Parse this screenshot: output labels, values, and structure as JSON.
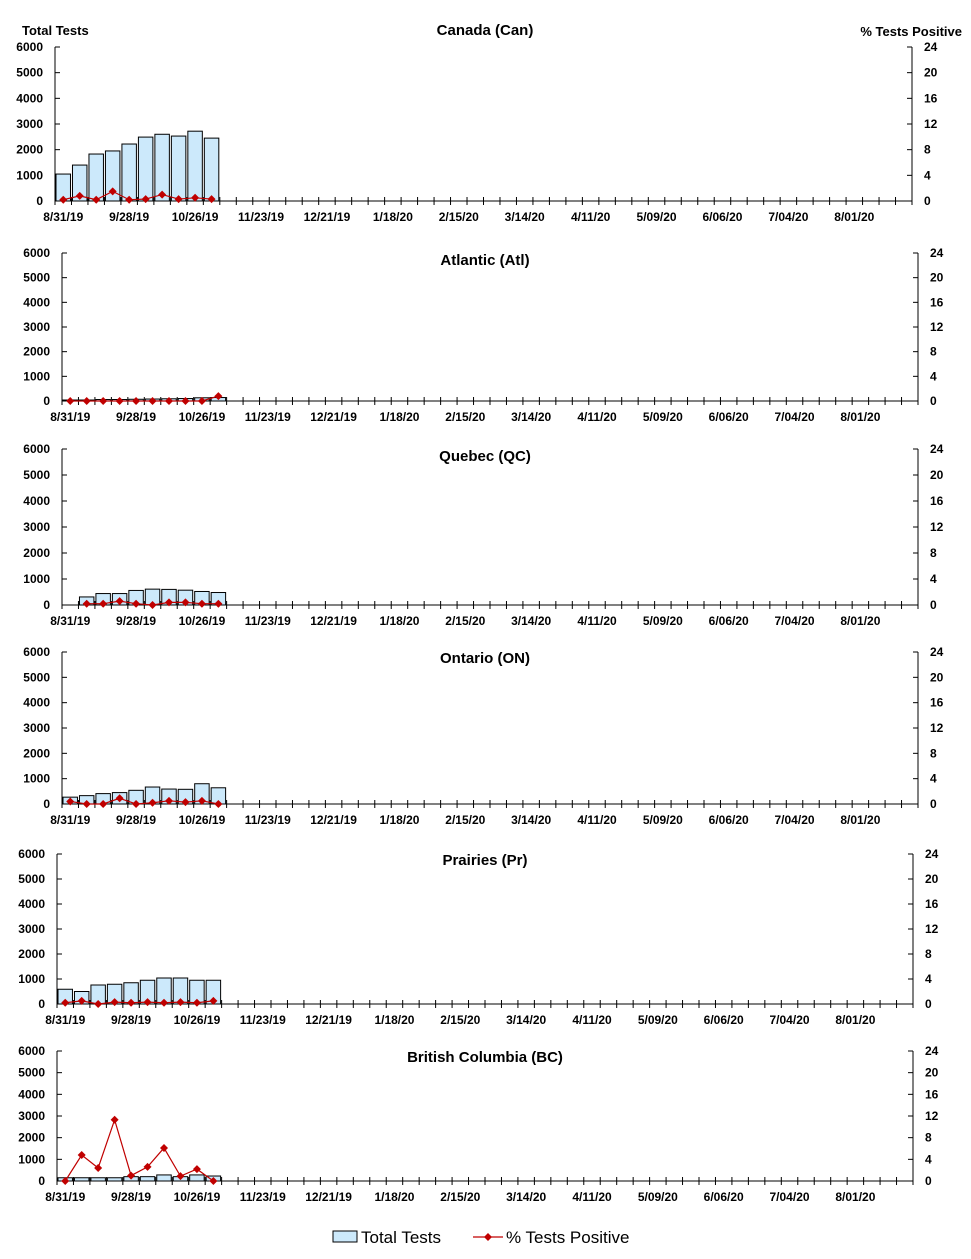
{
  "chart_data": [
    {
      "type": "bar+line",
      "title": "Canada (Can)",
      "ylabel": "Total Tests",
      "y2label": "% Tests Positive",
      "ylim": [
        0,
        6000
      ],
      "y2lim": [
        0,
        24
      ],
      "tests": [
        1050,
        1400,
        1830,
        1950,
        2220,
        2490,
        2600,
        2530,
        2720,
        2450
      ],
      "positive": [
        0.2,
        0.8,
        0.2,
        1.5,
        0.2,
        0.3,
        1.0,
        0.3,
        0.5,
        0.3
      ]
    },
    {
      "type": "bar+line",
      "title": "Atlantic (Atl)",
      "ylim": [
        0,
        6000
      ],
      "y2lim": [
        0,
        24
      ],
      "tests": [
        40,
        40,
        60,
        60,
        70,
        80,
        90,
        100,
        130,
        140
      ],
      "positive": [
        0,
        0,
        0,
        0,
        0,
        0,
        0,
        0,
        0,
        0.8
      ]
    },
    {
      "type": "bar+line",
      "title": "Quebec (QC)",
      "ylim": [
        0,
        6000
      ],
      "y2lim": [
        0,
        24
      ],
      "tests": [
        null,
        310,
        440,
        440,
        560,
        610,
        600,
        570,
        520,
        480
      ],
      "positive": [
        null,
        0.2,
        0.2,
        0.6,
        0.2,
        0,
        0.4,
        0.4,
        0.2,
        0.2
      ]
    },
    {
      "type": "bar+line",
      "title": "Ontario (ON)",
      "ylim": [
        0,
        6000
      ],
      "y2lim": [
        0,
        24
      ],
      "tests": [
        270,
        330,
        410,
        450,
        540,
        670,
        590,
        580,
        800,
        640
      ],
      "positive": [
        0.4,
        0,
        0,
        0.9,
        0,
        0.2,
        0.5,
        0.3,
        0.5,
        0
      ]
    },
    {
      "type": "bar+line",
      "title": "Prairies (Pr)",
      "ylim": [
        0,
        6000
      ],
      "y2lim": [
        0,
        24
      ],
      "tests": [
        590,
        500,
        760,
        790,
        850,
        950,
        1040,
        1040,
        950,
        950
      ],
      "positive": [
        0.2,
        0.5,
        0,
        0.3,
        0.2,
        0.3,
        0.2,
        0.3,
        0.2,
        0.5
      ]
    },
    {
      "type": "bar+line",
      "title": "British Columbia (BC)",
      "ylim": [
        0,
        6000
      ],
      "y2lim": [
        0,
        24
      ],
      "tests": [
        150,
        150,
        150,
        150,
        200,
        200,
        280,
        200,
        280,
        230
      ],
      "positive": [
        0,
        4.8,
        2.4,
        11.3,
        1.0,
        2.6,
        6.1,
        0.9,
        2.2,
        0
      ]
    }
  ],
  "y_ticks": [
    "0",
    "1000",
    "2000",
    "3000",
    "4000",
    "5000",
    "6000"
  ],
  "y2_ticks": [
    "0",
    "4",
    "8",
    "12",
    "16",
    "20",
    "24"
  ],
  "x_ticks": [
    "8/31/19",
    "9/28/19",
    "10/26/19",
    "11/23/19",
    "12/21/19",
    "1/18/20",
    "2/15/20",
    "3/14/20",
    "4/11/20",
    "5/09/20",
    "6/06/20",
    "7/04/20",
    "8/01/20"
  ],
  "legend": {
    "bars": "Total Tests",
    "line": "% Tests Positive"
  },
  "colors": {
    "bar_fill": "#cce9fb",
    "bar_stroke": "#000000",
    "line": "#c00000"
  }
}
